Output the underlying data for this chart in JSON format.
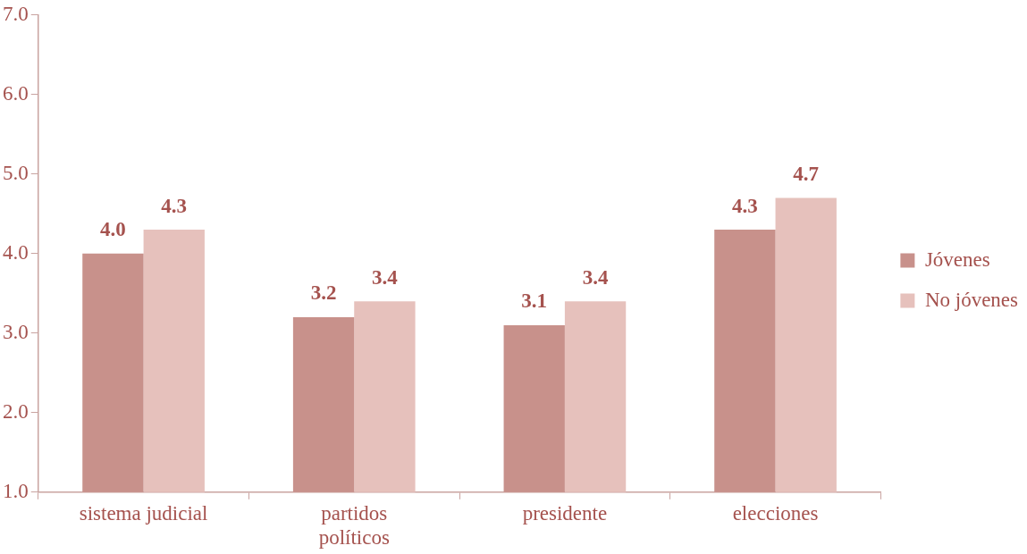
{
  "chart_data": {
    "type": "bar",
    "categories": [
      "sistema judicial",
      "partidos políticos",
      "presidente",
      "elecciones"
    ],
    "series": [
      {
        "name": "Jóvenes",
        "color": "#c8918b",
        "values": [
          4.0,
          3.2,
          3.1,
          4.3
        ],
        "value_labels": [
          "4.0",
          "3.2",
          "3.1",
          "4.3"
        ]
      },
      {
        "name": "No jóvenes",
        "color": "#e6c1bc",
        "values": [
          4.3,
          3.4,
          3.4,
          4.7
        ],
        "value_labels": [
          "4.3",
          "3.4",
          "3.4",
          "4.7"
        ]
      }
    ],
    "ylim": [
      1,
      7
    ],
    "yticks": [
      {
        "value": 1,
        "label": "1.0"
      },
      {
        "value": 2,
        "label": "2.0"
      },
      {
        "value": 3,
        "label": "3.0"
      },
      {
        "value": 4,
        "label": "4.0"
      },
      {
        "value": 5,
        "label": "5.0"
      },
      {
        "value": 6,
        "label": "6.0"
      },
      {
        "value": 7,
        "label": "7.0"
      }
    ],
    "grid": false,
    "legend": "right"
  }
}
